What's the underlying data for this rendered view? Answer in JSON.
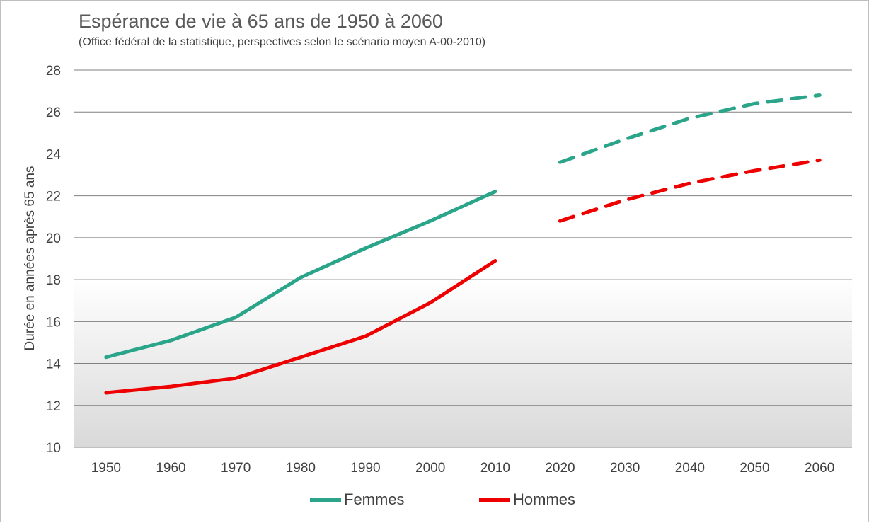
{
  "colors": {
    "femmes": "#2aa58a",
    "hommes": "#ee0000",
    "grid": "#808080",
    "axis_text": "#404040"
  },
  "chart_data": {
    "type": "line",
    "title": "Espérance de vie à 65 ans de 1950 à 2060",
    "subtitle": "(Office fédéral de la statistique, perspectives selon le scénario moyen A-00-2010)",
    "ylabel": "Durée en années après 65 ans",
    "xlabel": "",
    "categories": [
      "1950",
      "1960",
      "1970",
      "1980",
      "1990",
      "2000",
      "2010",
      "2020",
      "2030",
      "2040",
      "2050",
      "2060"
    ],
    "ylim": [
      10,
      28
    ],
    "yticks": [
      10,
      12,
      14,
      16,
      18,
      20,
      22,
      24,
      26,
      28
    ],
    "grid": true,
    "legend_position": "bottom",
    "series": [
      {
        "name": "Femmes",
        "color": "#2aa58a",
        "observed": [
          14.3,
          15.1,
          16.2,
          18.1,
          19.5,
          20.8,
          22.2,
          null,
          null,
          null,
          null,
          null
        ],
        "projected": [
          null,
          null,
          null,
          null,
          null,
          null,
          null,
          23.6,
          24.7,
          25.7,
          26.4,
          26.8
        ]
      },
      {
        "name": "Hommes",
        "color": "#ee0000",
        "observed": [
          12.6,
          12.9,
          13.3,
          14.3,
          15.3,
          16.9,
          18.9,
          null,
          null,
          null,
          null,
          null
        ],
        "projected": [
          null,
          null,
          null,
          null,
          null,
          null,
          null,
          20.8,
          21.8,
          22.6,
          23.2,
          23.7
        ]
      }
    ]
  }
}
